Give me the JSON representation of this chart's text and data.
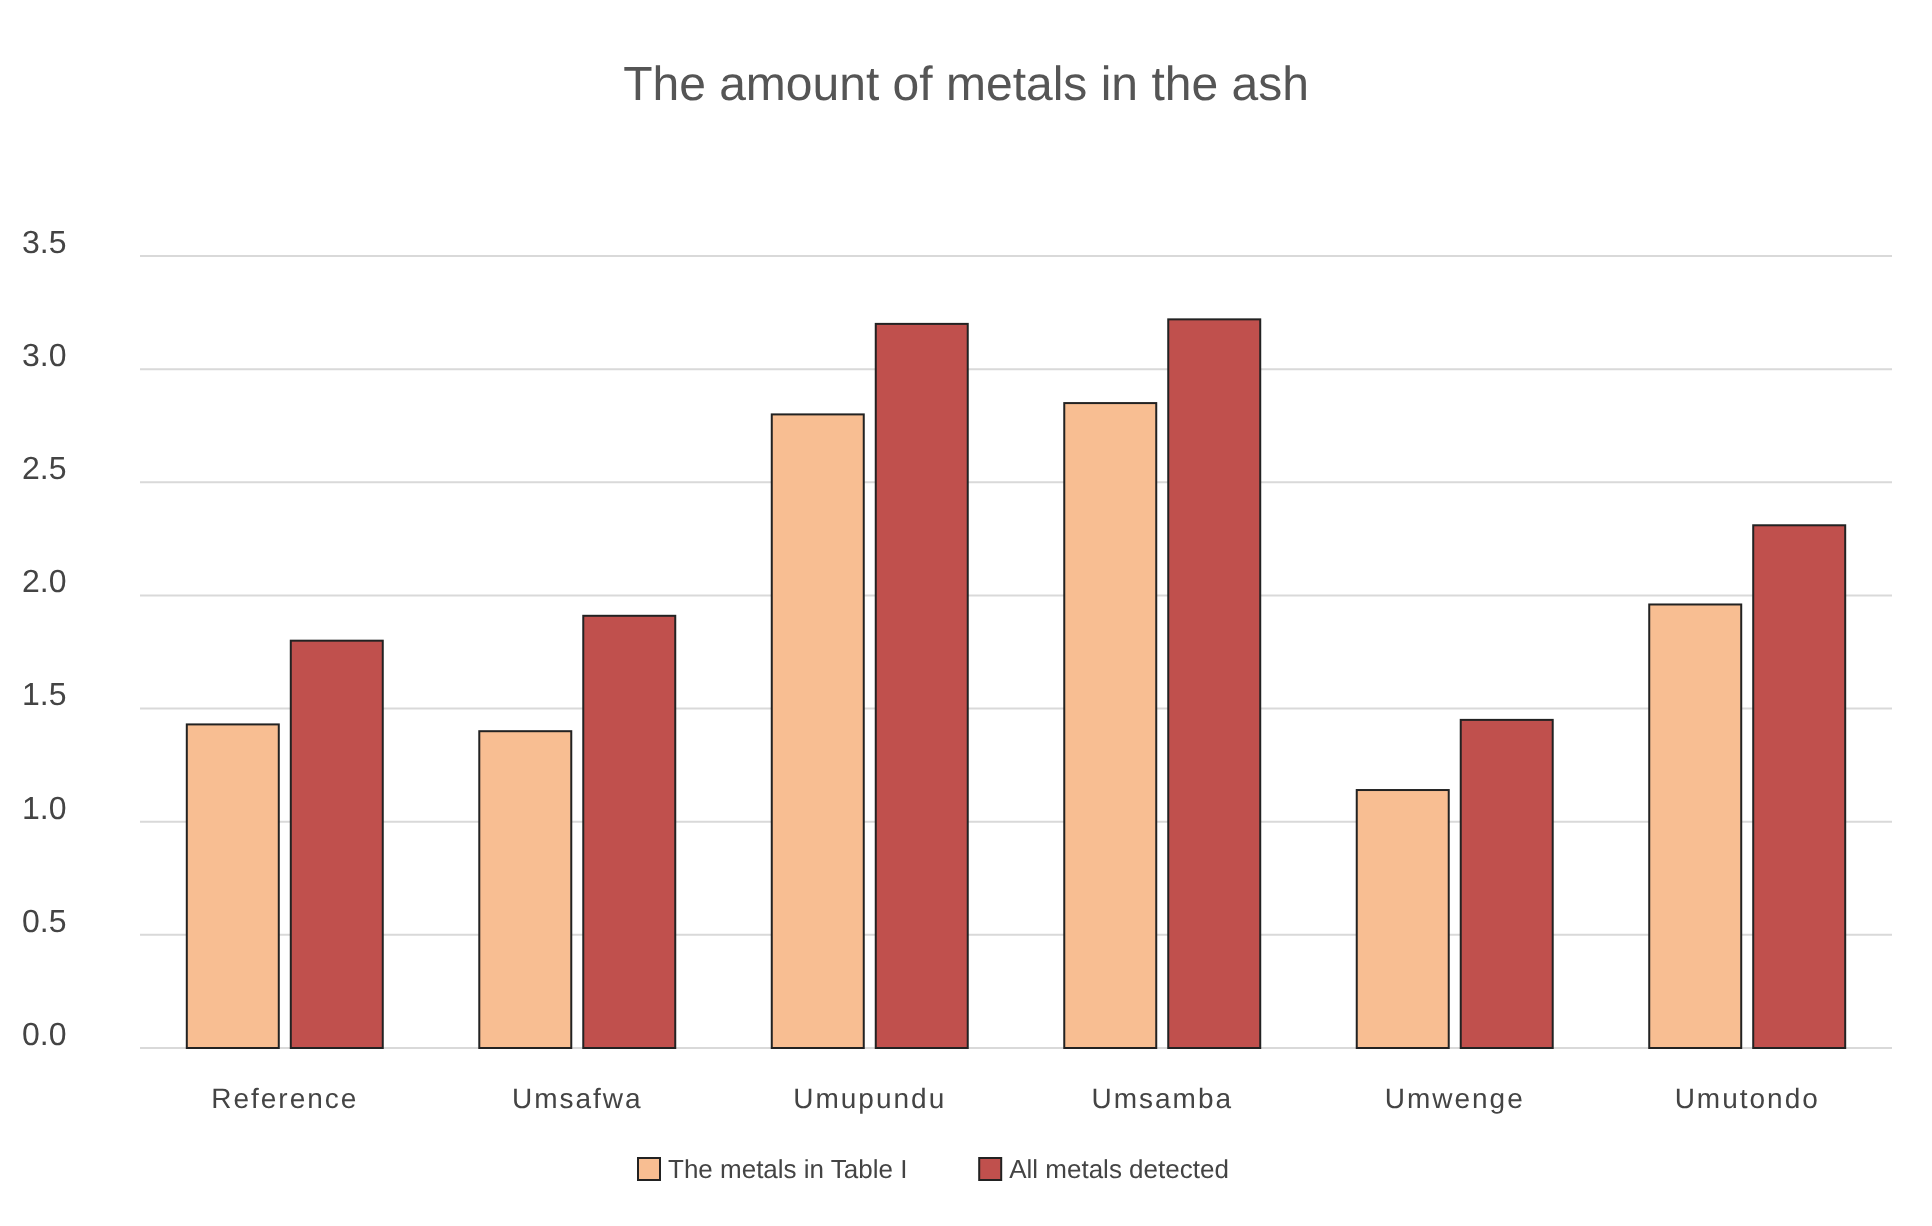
{
  "chart_data": {
    "type": "bar",
    "title": "The amount of metals in the ash",
    "categories": [
      "Reference",
      "Umsafwa",
      "Umupundu",
      "Umsamba",
      "Umwenge",
      "Umutondo"
    ],
    "series": [
      {
        "name": "The metals in Table I",
        "color": "#f8be92",
        "values": [
          1.43,
          1.4,
          2.8,
          2.85,
          1.14,
          1.96
        ]
      },
      {
        "name": "All metals detected",
        "color": "#c0504d",
        "values": [
          1.8,
          1.91,
          3.2,
          3.22,
          1.45,
          2.31
        ]
      }
    ],
    "ylim": [
      0,
      3.5
    ],
    "yticks": [
      {
        "value": 0,
        "label": "0.0"
      },
      {
        "value": 0.5,
        "label": "0.5"
      },
      {
        "value": 1,
        "label": "1.0"
      },
      {
        "value": 1.5,
        "label": "1.5"
      },
      {
        "value": 2,
        "label": "2.0"
      },
      {
        "value": 2.5,
        "label": "2.5"
      },
      {
        "value": 3,
        "label": "3.0"
      },
      {
        "value": 3.5,
        "label": "3.5"
      }
    ],
    "grid": "y",
    "legend": "bottom"
  }
}
